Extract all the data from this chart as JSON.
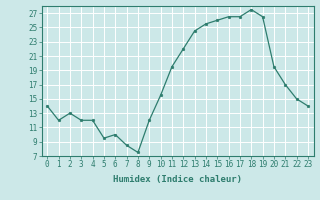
{
  "x": [
    0,
    1,
    2,
    3,
    4,
    5,
    6,
    7,
    8,
    9,
    10,
    11,
    12,
    13,
    14,
    15,
    16,
    17,
    18,
    19,
    20,
    21,
    22,
    23
  ],
  "y": [
    14,
    12,
    13,
    12,
    12,
    9.5,
    10,
    8.5,
    7.5,
    12,
    15.5,
    19.5,
    22,
    24.5,
    25.5,
    26,
    26.5,
    26.5,
    27.5,
    26.5,
    19.5,
    17,
    15,
    14
  ],
  "line_color": "#2e7d6e",
  "marker_color": "#2e7d6e",
  "bg_color": "#cce8e8",
  "grid_color": "#ffffff",
  "xlabel": "Humidex (Indice chaleur)",
  "xlim": [
    -0.5,
    23.5
  ],
  "ylim": [
    7,
    28
  ],
  "yticks": [
    7,
    9,
    11,
    13,
    15,
    17,
    19,
    21,
    23,
    25,
    27
  ],
  "xticks": [
    0,
    1,
    2,
    3,
    4,
    5,
    6,
    7,
    8,
    9,
    10,
    11,
    12,
    13,
    14,
    15,
    16,
    17,
    18,
    19,
    20,
    21,
    22,
    23
  ],
  "xtick_labels": [
    "0",
    "1",
    "2",
    "3",
    "4",
    "5",
    "6",
    "7",
    "8",
    "9",
    "10",
    "11",
    "12",
    "13",
    "14",
    "15",
    "16",
    "17",
    "18",
    "19",
    "20",
    "21",
    "22",
    "23"
  ],
  "label_fontsize": 6.5,
  "tick_fontsize": 5.5
}
